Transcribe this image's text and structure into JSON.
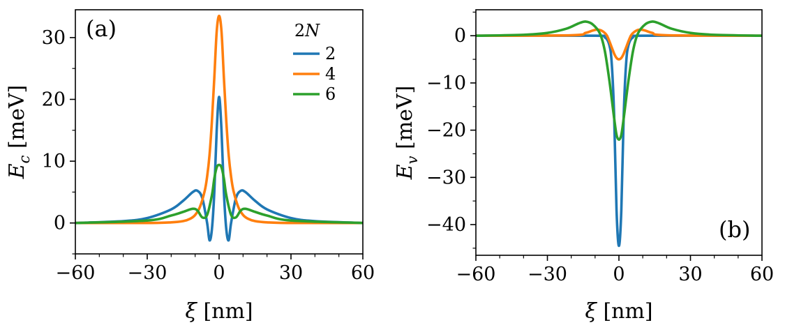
{
  "colors": {
    "blue": "#1f77b4",
    "orange": "#ff7f0e",
    "green": "#2ca02c"
  },
  "chart_data": [
    {
      "type": "line",
      "panel_label": "(a)",
      "xlabel": "ξ [nm]",
      "ylabel": "E_c [meV]",
      "ylabel_symbol": "E",
      "ylabel_sub": "c",
      "ylabel_unit": " [meV]",
      "xlim": [
        -60,
        60
      ],
      "ylim": [
        -5,
        34.5
      ],
      "xticks": [
        -60,
        -30,
        0,
        30,
        60
      ],
      "xtick_labels": [
        "−60",
        "−30",
        "0",
        "30",
        "60"
      ],
      "yticks": [
        0,
        10,
        20,
        30
      ],
      "ytick_labels": [
        "0",
        "10",
        "20",
        "30"
      ],
      "grid": false,
      "legend": {
        "title": "2N",
        "placement": "top-right",
        "entries": [
          "2",
          "4",
          "6"
        ]
      },
      "series": [
        {
          "name": "2",
          "color": "blue",
          "x": [
            -60,
            -40,
            -30,
            -20,
            -15,
            -11,
            -9,
            -7,
            -5,
            -4,
            -3,
            -2,
            -1,
            0,
            1,
            2,
            3,
            4,
            5,
            7,
            9,
            11,
            15,
            20,
            30,
            40,
            60
          ],
          "y": [
            0,
            0.3,
            0.8,
            2.2,
            3.6,
            5.0,
            5.2,
            4.0,
            0,
            -2.8,
            -1.0,
            5.0,
            15.0,
            20.4,
            15.0,
            5.0,
            -1.0,
            -2.8,
            0,
            4.0,
            5.2,
            5.0,
            3.6,
            2.2,
            0.8,
            0.3,
            0
          ]
        },
        {
          "name": "4",
          "color": "orange",
          "x": [
            -60,
            -30,
            -20,
            -15,
            -12,
            -10,
            -8,
            -6,
            -5,
            -4,
            -3,
            -2,
            -1,
            0,
            1,
            2,
            3,
            4,
            5,
            6,
            8,
            10,
            12,
            15,
            20,
            30,
            60
          ],
          "y": [
            0,
            0,
            0.1,
            0.3,
            0.7,
            1.3,
            2.6,
            5.2,
            7.5,
            11.0,
            16.5,
            23.5,
            31.0,
            33.5,
            31.0,
            23.5,
            16.5,
            11.0,
            7.5,
            5.2,
            2.6,
            1.3,
            0.7,
            0.3,
            0.1,
            0,
            0
          ]
        },
        {
          "name": "6",
          "color": "green",
          "x": [
            -60,
            -30,
            -20,
            -15,
            -11,
            -9,
            -7,
            -5,
            -3,
            -2,
            -1,
            0,
            1,
            2,
            3,
            5,
            7,
            9,
            11,
            15,
            20,
            30,
            60
          ],
          "y": [
            0,
            0.4,
            1.2,
            1.8,
            2.3,
            2.0,
            0.9,
            1.3,
            4.5,
            7.2,
            9.0,
            9.4,
            9.0,
            7.2,
            4.5,
            1.3,
            0.9,
            2.0,
            2.3,
            1.8,
            1.2,
            0.4,
            0
          ]
        }
      ]
    },
    {
      "type": "line",
      "panel_label": "(b)",
      "xlabel": "ξ [nm]",
      "ylabel": "E_v [meV]",
      "ylabel_symbol": "E",
      "ylabel_sub": "v",
      "ylabel_unit": " [meV]",
      "xlim": [
        -60,
        60
      ],
      "ylim": [
        -46.5,
        5.5
      ],
      "xticks": [
        -60,
        -30,
        0,
        30,
        60
      ],
      "xtick_labels": [
        "−60",
        "−30",
        "0",
        "30",
        "60"
      ],
      "yticks": [
        0,
        -10,
        -20,
        -30,
        -40
      ],
      "ytick_labels": [
        "0",
        "−10",
        "−20",
        "−30",
        "−40"
      ],
      "grid": false,
      "series": [
        {
          "name": "2",
          "color": "blue",
          "x": [
            -60,
            -10,
            -6,
            -4,
            -3,
            -2,
            -1,
            0,
            1,
            2,
            3,
            4,
            6,
            10,
            60
          ],
          "y": [
            0,
            0,
            -0.3,
            -2.0,
            -6.0,
            -17.0,
            -37.0,
            -44.5,
            -37.0,
            -17.0,
            -6.0,
            -2.0,
            -0.3,
            0,
            0
          ]
        },
        {
          "name": "4",
          "color": "orange",
          "x": [
            -60,
            -20,
            -14,
            -11,
            -9,
            -7,
            -5,
            -3,
            -2,
            -1,
            0,
            1,
            2,
            3,
            5,
            7,
            9,
            11,
            14,
            20,
            60
          ],
          "y": [
            0,
            0.1,
            0.6,
            1.1,
            1.3,
            1.0,
            0,
            -2.5,
            -3.8,
            -4.7,
            -5.0,
            -4.7,
            -3.8,
            -2.5,
            0,
            1.0,
            1.3,
            1.1,
            0.6,
            0.1,
            0
          ]
        },
        {
          "name": "6",
          "color": "green",
          "x": [
            -60,
            -40,
            -30,
            -22,
            -17,
            -14,
            -11,
            -8,
            -6,
            -4,
            -2,
            -1,
            0,
            1,
            2,
            4,
            6,
            8,
            11,
            14,
            17,
            22,
            30,
            40,
            60
          ],
          "y": [
            0,
            0.2,
            0.6,
            1.5,
            2.6,
            3.0,
            2.4,
            0.5,
            -3.0,
            -9.5,
            -17.5,
            -21.0,
            -22.0,
            -21.0,
            -17.5,
            -9.5,
            -3.0,
            0.5,
            2.4,
            3.0,
            2.6,
            1.5,
            0.6,
            0.2,
            0
          ]
        }
      ]
    }
  ]
}
